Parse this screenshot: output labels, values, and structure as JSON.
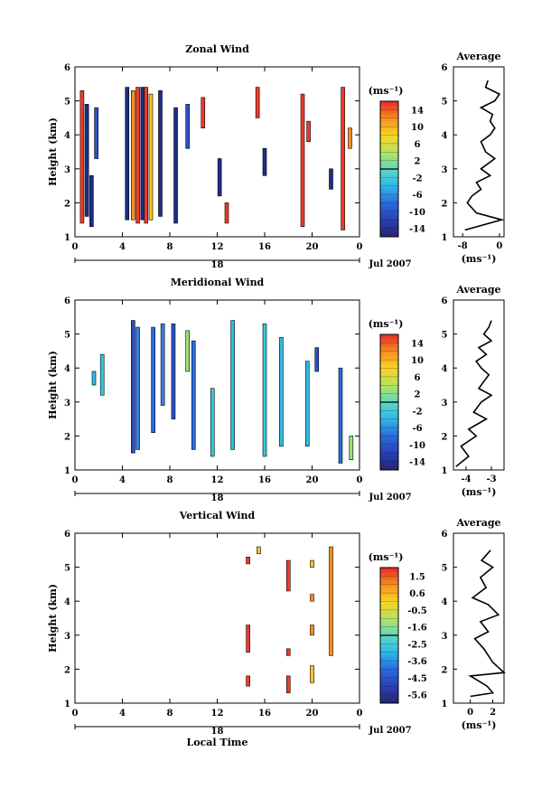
{
  "chart_data": [
    {
      "type": "heatmap",
      "title": "Zonal Wind",
      "ylabel": "Height (km)",
      "xlim": [
        0,
        24
      ],
      "ylim": [
        1,
        6
      ],
      "xticks": [
        "0",
        "4",
        "8",
        "12",
        "16",
        "20",
        "0"
      ],
      "yticks": [
        "1",
        "2",
        "3",
        "4",
        "5",
        "6"
      ],
      "date_label": "18",
      "month_label": "Jul 2007",
      "colorbar": {
        "unit": "(ms⁻¹)",
        "ticks": [
          "14",
          "10",
          "6",
          "2",
          "-2",
          "-6",
          "-10",
          "-14"
        ],
        "min": -16,
        "max": 16
      },
      "columns": [
        {
          "t": 0.6,
          "color": "#ef3a2a",
          "from": 1.4,
          "to": 5.3
        },
        {
          "t": 1.0,
          "color": "#1c2f86",
          "from": 1.6,
          "to": 4.9
        },
        {
          "t": 1.4,
          "color": "#1c2f86",
          "from": 1.3,
          "to": 2.8
        },
        {
          "t": 1.8,
          "color": "#2a51c9",
          "from": 3.3,
          "to": 4.8
        },
        {
          "t": 4.4,
          "color": "#1c2f86",
          "from": 1.5,
          "to": 5.4
        },
        {
          "t": 4.9,
          "color": "#f7901e",
          "from": 1.5,
          "to": 5.3
        },
        {
          "t": 5.3,
          "color": "#ef3a2a",
          "from": 1.4,
          "to": 5.4
        },
        {
          "t": 5.7,
          "color": "#1c2f86",
          "from": 1.5,
          "to": 5.4
        },
        {
          "t": 6.0,
          "color": "#ef3a2a",
          "from": 1.4,
          "to": 5.4
        },
        {
          "t": 6.4,
          "color": "#f9c623",
          "from": 1.5,
          "to": 5.2
        },
        {
          "t": 7.2,
          "color": "#1c2f86",
          "from": 1.6,
          "to": 5.3
        },
        {
          "t": 8.5,
          "color": "#1c2f86",
          "from": 1.4,
          "to": 4.8
        },
        {
          "t": 9.5,
          "color": "#2a51c9",
          "from": 3.6,
          "to": 4.9
        },
        {
          "t": 10.8,
          "color": "#ef3a2a",
          "from": 4.2,
          "to": 5.1
        },
        {
          "t": 12.2,
          "color": "#1c2f86",
          "from": 2.2,
          "to": 3.3
        },
        {
          "t": 12.8,
          "color": "#ef3a2a",
          "from": 1.4,
          "to": 2.0
        },
        {
          "t": 15.4,
          "color": "#ef3a2a",
          "from": 4.5,
          "to": 5.4
        },
        {
          "t": 16.0,
          "color": "#1c2f86",
          "from": 2.8,
          "to": 3.6
        },
        {
          "t": 19.2,
          "color": "#ef3a2a",
          "from": 1.3,
          "to": 5.2
        },
        {
          "t": 19.7,
          "color": "#ef3a2a",
          "from": 3.8,
          "to": 4.4
        },
        {
          "t": 21.6,
          "color": "#1c2f86",
          "from": 2.4,
          "to": 3.0
        },
        {
          "t": 22.6,
          "color": "#ef3a2a",
          "from": 1.2,
          "to": 5.4
        },
        {
          "t": 23.2,
          "color": "#f7901e",
          "from": 3.6,
          "to": 4.2
        }
      ],
      "profile": {
        "title": "Average",
        "xlabel": "(ms⁻¹)",
        "xlim": [
          -10,
          1
        ],
        "xticks": [
          -8,
          0
        ],
        "ylim": [
          1,
          6
        ],
        "yticks": [
          "1",
          "2",
          "3",
          "4",
          "5",
          "6"
        ],
        "points": [
          [
            -7.5,
            1.2
          ],
          [
            0.5,
            1.5
          ],
          [
            -5.0,
            1.7
          ],
          [
            -7.0,
            2.0
          ],
          [
            -6.0,
            2.2
          ],
          [
            -4.0,
            2.4
          ],
          [
            -5.0,
            2.6
          ],
          [
            -2.0,
            2.8
          ],
          [
            -4.0,
            3.0
          ],
          [
            -1.0,
            3.3
          ],
          [
            -3.0,
            3.5
          ],
          [
            -4.0,
            3.8
          ],
          [
            -2.0,
            4.0
          ],
          [
            -1.0,
            4.2
          ],
          [
            -2.0,
            4.4
          ],
          [
            -1.5,
            4.6
          ],
          [
            -4.0,
            4.8
          ],
          [
            -1.0,
            5.0
          ],
          [
            0.0,
            5.2
          ],
          [
            -3.0,
            5.4
          ],
          [
            -2.5,
            5.6
          ]
        ]
      }
    },
    {
      "type": "heatmap",
      "title": "Meridional Wind",
      "ylabel": "Height (km)",
      "xlim": [
        0,
        24
      ],
      "ylim": [
        1,
        6
      ],
      "xticks": [
        "0",
        "4",
        "8",
        "12",
        "16",
        "20",
        "0"
      ],
      "yticks": [
        "1",
        "2",
        "3",
        "4",
        "5",
        "6"
      ],
      "date_label": "18",
      "month_label": "Jul 2007",
      "colorbar": {
        "unit": "(ms⁻¹)",
        "ticks": [
          "14",
          "10",
          "6",
          "2",
          "-2",
          "-6",
          "-10",
          "-14"
        ],
        "min": -16,
        "max": 16
      },
      "columns": [
        {
          "t": 1.6,
          "color": "#2fbce6",
          "from": 3.5,
          "to": 3.9
        },
        {
          "t": 2.3,
          "color": "#33c9d6",
          "from": 3.2,
          "to": 4.4
        },
        {
          "t": 4.9,
          "color": "#2a51c9",
          "from": 1.5,
          "to": 5.4
        },
        {
          "t": 5.3,
          "color": "#3a7fe0",
          "from": 1.6,
          "to": 5.2
        },
        {
          "t": 6.6,
          "color": "#2a6be0",
          "from": 2.1,
          "to": 5.2
        },
        {
          "t": 7.4,
          "color": "#3a7fe0",
          "from": 2.9,
          "to": 5.3
        },
        {
          "t": 8.3,
          "color": "#2a51c9",
          "from": 2.5,
          "to": 5.3
        },
        {
          "t": 9.5,
          "color": "#9be07a",
          "from": 3.9,
          "to": 5.1
        },
        {
          "t": 10.0,
          "color": "#2a6be0",
          "from": 1.6,
          "to": 4.8
        },
        {
          "t": 11.6,
          "color": "#33c9d6",
          "from": 1.4,
          "to": 3.4
        },
        {
          "t": 13.3,
          "color": "#2fbce6",
          "from": 1.6,
          "to": 5.4
        },
        {
          "t": 16.0,
          "color": "#33c9d6",
          "from": 1.4,
          "to": 5.3
        },
        {
          "t": 17.4,
          "color": "#2fbce6",
          "from": 1.7,
          "to": 4.9
        },
        {
          "t": 19.6,
          "color": "#2fbce6",
          "from": 1.7,
          "to": 4.2
        },
        {
          "t": 20.4,
          "color": "#2a51c9",
          "from": 3.9,
          "to": 4.6
        },
        {
          "t": 22.4,
          "color": "#2a6be0",
          "from": 1.2,
          "to": 4.0
        },
        {
          "t": 23.3,
          "color": "#9be07a",
          "from": 1.3,
          "to": 2.0
        }
      ],
      "profile": {
        "title": "Average",
        "xlabel": "(ms⁻¹)",
        "xlim": [
          -4.5,
          -2.5
        ],
        "xticks": [
          -4,
          -3
        ],
        "ylim": [
          1,
          6
        ],
        "yticks": [
          "1",
          "2",
          "3",
          "4",
          "5",
          "6"
        ],
        "points": [
          [
            -4.4,
            1.1
          ],
          [
            -3.9,
            1.4
          ],
          [
            -4.2,
            1.7
          ],
          [
            -3.6,
            2.0
          ],
          [
            -3.9,
            2.2
          ],
          [
            -3.2,
            2.5
          ],
          [
            -3.7,
            2.7
          ],
          [
            -3.4,
            3.0
          ],
          [
            -3.0,
            3.2
          ],
          [
            -3.5,
            3.4
          ],
          [
            -3.3,
            3.6
          ],
          [
            -3.1,
            3.8
          ],
          [
            -3.4,
            4.0
          ],
          [
            -3.6,
            4.2
          ],
          [
            -3.2,
            4.4
          ],
          [
            -3.5,
            4.6
          ],
          [
            -3.0,
            4.8
          ],
          [
            -3.3,
            5.0
          ],
          [
            -3.1,
            5.2
          ],
          [
            -3.0,
            5.4
          ]
        ]
      }
    },
    {
      "type": "heatmap",
      "title": "Vertical Wind",
      "xlabel": "Local Time",
      "ylabel": "Height (km)",
      "xlim": [
        0,
        24
      ],
      "ylim": [
        1,
        6
      ],
      "xticks": [
        "0",
        "4",
        "8",
        "12",
        "16",
        "20",
        "0"
      ],
      "yticks": [
        "1",
        "2",
        "3",
        "4",
        "5",
        "6"
      ],
      "date_label": "18",
      "month_label": "Jul 2007",
      "colorbar": {
        "unit": "(ms⁻¹)",
        "ticks": [
          "1.5",
          "0.6",
          "-0.5",
          "-1.6",
          "-2.5",
          "-3.6",
          "-4.5",
          "-5.6"
        ],
        "min": -6,
        "max": 2
      },
      "columns": [
        {
          "t": 14.6,
          "color": "#ef3a2a",
          "from": 1.5,
          "to": 1.8
        },
        {
          "t": 14.6,
          "color": "#ef3a2a",
          "from": 2.5,
          "to": 3.3
        },
        {
          "t": 14.6,
          "color": "#ef3a2a",
          "from": 5.1,
          "to": 5.3
        },
        {
          "t": 15.5,
          "color": "#f9c623",
          "from": 5.4,
          "to": 5.6
        },
        {
          "t": 18.0,
          "color": "#ef3a2a",
          "from": 4.3,
          "to": 5.2
        },
        {
          "t": 18.0,
          "color": "#ef3a2a",
          "from": 2.4,
          "to": 2.6
        },
        {
          "t": 18.0,
          "color": "#ef3a2a",
          "from": 1.3,
          "to": 1.8
        },
        {
          "t": 20.0,
          "color": "#f7901e",
          "from": 3.0,
          "to": 3.3
        },
        {
          "t": 20.0,
          "color": "#f7901e",
          "from": 4.0,
          "to": 4.2
        },
        {
          "t": 20.0,
          "color": "#f9c623",
          "from": 5.0,
          "to": 5.2
        },
        {
          "t": 20.0,
          "color": "#f9c623",
          "from": 1.6,
          "to": 2.1
        },
        {
          "t": 21.6,
          "color": "#f7901e",
          "from": 2.4,
          "to": 5.6
        }
      ],
      "profile": {
        "title": "Average",
        "xlabel": "(ms⁻¹)",
        "xlim": [
          -1.5,
          3
        ],
        "xticks": [
          0,
          2
        ],
        "ylim": [
          1,
          6
        ],
        "yticks": [
          "1",
          "2",
          "3",
          "4",
          "5",
          "6"
        ],
        "points": [
          [
            0.0,
            1.2
          ],
          [
            2.0,
            1.3
          ],
          [
            1.5,
            1.5
          ],
          [
            0.0,
            1.8
          ],
          [
            3.0,
            1.9
          ],
          [
            2.0,
            2.2
          ],
          [
            1.2,
            2.6
          ],
          [
            0.4,
            2.9
          ],
          [
            1.6,
            3.1
          ],
          [
            0.9,
            3.4
          ],
          [
            2.5,
            3.6
          ],
          [
            1.6,
            3.9
          ],
          [
            0.2,
            4.1
          ],
          [
            1.4,
            4.4
          ],
          [
            0.9,
            4.7
          ],
          [
            2.0,
            5.0
          ],
          [
            1.0,
            5.2
          ],
          [
            1.8,
            5.5
          ]
        ]
      }
    }
  ]
}
